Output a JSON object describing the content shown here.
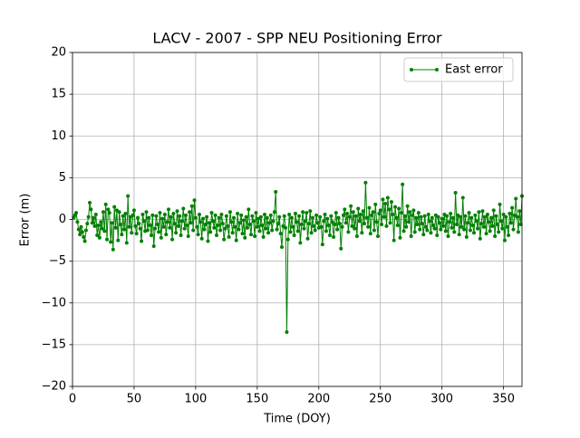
{
  "chart_data": {
    "type": "line",
    "title": "LACV - 2007 - SPP NEU Positioning Error",
    "x_label": "Time (DOY)",
    "y_label": "Error (m)",
    "xlim": [
      0,
      365
    ],
    "ylim": [
      -20,
      20
    ],
    "xticks": [
      0,
      50,
      100,
      150,
      200,
      250,
      300,
      350
    ],
    "yticks": [
      {
        "value": -20,
        "label": "−20"
      },
      {
        "value": -15,
        "label": "−15"
      },
      {
        "value": -10,
        "label": "−10"
      },
      {
        "value": -5,
        "label": "−5"
      },
      0,
      5,
      10,
      15,
      20
    ],
    "grid": true,
    "legend": "upper right",
    "x": [
      1,
      2,
      3,
      4,
      5,
      6,
      7,
      8,
      9,
      10,
      11,
      12,
      13,
      14,
      15,
      16,
      17,
      18,
      19,
      20,
      21,
      22,
      23,
      24,
      25,
      26,
      27,
      28,
      29,
      30,
      31,
      32,
      33,
      34,
      35,
      36,
      37,
      38,
      39,
      40,
      41,
      42,
      43,
      44,
      45,
      46,
      47,
      48,
      49,
      50,
      51,
      52,
      53,
      54,
      55,
      56,
      57,
      58,
      59,
      60,
      61,
      62,
      63,
      64,
      65,
      66,
      67,
      68,
      69,
      70,
      71,
      72,
      73,
      74,
      75,
      76,
      77,
      78,
      79,
      80,
      81,
      82,
      83,
      84,
      85,
      86,
      87,
      88,
      89,
      90,
      91,
      92,
      93,
      94,
      95,
      96,
      97,
      98,
      99,
      100,
      101,
      102,
      103,
      104,
      105,
      106,
      107,
      108,
      109,
      110,
      111,
      112,
      113,
      114,
      115,
      116,
      117,
      118,
      119,
      120,
      121,
      122,
      123,
      124,
      125,
      126,
      127,
      128,
      129,
      130,
      131,
      132,
      133,
      134,
      135,
      136,
      137,
      138,
      139,
      140,
      141,
      142,
      143,
      144,
      145,
      146,
      147,
      148,
      149,
      150,
      151,
      152,
      153,
      154,
      155,
      156,
      157,
      158,
      159,
      160,
      161,
      162,
      163,
      164,
      165,
      166,
      167,
      168,
      169,
      170,
      171,
      172,
      173,
      174,
      175,
      176,
      177,
      178,
      179,
      180,
      181,
      182,
      183,
      184,
      185,
      186,
      187,
      188,
      189,
      190,
      191,
      192,
      193,
      194,
      195,
      196,
      197,
      198,
      199,
      200,
      201,
      202,
      203,
      204,
      205,
      206,
      207,
      208,
      209,
      210,
      211,
      212,
      213,
      214,
      215,
      216,
      217,
      218,
      219,
      220,
      221,
      222,
      223,
      224,
      225,
      226,
      227,
      228,
      229,
      230,
      231,
      232,
      233,
      234,
      235,
      236,
      237,
      238,
      239,
      240,
      241,
      242,
      243,
      244,
      245,
      246,
      247,
      248,
      249,
      250,
      251,
      252,
      253,
      254,
      255,
      256,
      257,
      258,
      259,
      260,
      261,
      262,
      263,
      264,
      265,
      266,
      267,
      268,
      269,
      270,
      271,
      272,
      273,
      274,
      275,
      276,
      277,
      278,
      279,
      280,
      281,
      282,
      283,
      284,
      285,
      286,
      287,
      288,
      289,
      290,
      291,
      292,
      293,
      294,
      295,
      296,
      297,
      298,
      299,
      300,
      301,
      302,
      303,
      304,
      305,
      306,
      307,
      308,
      309,
      310,
      311,
      312,
      313,
      314,
      315,
      316,
      317,
      318,
      319,
      320,
      321,
      322,
      323,
      324,
      325,
      326,
      327,
      328,
      329,
      330,
      331,
      332,
      333,
      334,
      335,
      336,
      337,
      338,
      339,
      340,
      341,
      342,
      343,
      344,
      345,
      346,
      347,
      348,
      349,
      350,
      351,
      352,
      353,
      354,
      355,
      356,
      357,
      358,
      359,
      360,
      361,
      362,
      363,
      364,
      365
    ],
    "series": [
      {
        "name": "East error",
        "color": "#008000",
        "values": [
          0.2,
          0.5,
          0.8,
          -0.3,
          -1.2,
          -1.8,
          -0.9,
          -1.5,
          -2.1,
          -2.6,
          -1.3,
          -0.5,
          0.3,
          2.0,
          1.2,
          -0.4,
          0.2,
          -0.8,
          0.6,
          -1.9,
          -0.7,
          -2.2,
          -0.3,
          -1.1,
          0.9,
          -1.4,
          1.8,
          -2.4,
          1.2,
          0.8,
          -2.7,
          -0.4,
          -3.6,
          1.5,
          -1.0,
          1.1,
          -2.5,
          0.9,
          -0.6,
          -1.8,
          0.4,
          -1.2,
          0.7,
          -2.8,
          2.8,
          -0.9,
          0.3,
          -1.6,
          0.5,
          1.1,
          -0.8,
          -1.7,
          0.2,
          -0.5,
          -1.1,
          -2.6,
          0.6,
          -0.2,
          -1.4,
          0.9,
          -1.3,
          0.2,
          -0.7,
          -1.9,
          0.5,
          -3.2,
          -1.1,
          0.4,
          -0.6,
          -1.5,
          0.8,
          -2.2,
          0.1,
          -0.9,
          0.6,
          -1.8,
          -0.3,
          1.2,
          -1.0,
          0.3,
          -2.4,
          0.7,
          -0.5,
          -1.6,
          1.0,
          -0.8,
          0.4,
          -1.9,
          -0.2,
          1.3,
          -1.1,
          0.5,
          -0.7,
          -2.0,
          0.9,
          -0.4,
          1.6,
          -1.3,
          2.3,
          0.2,
          -0.9,
          -1.8,
          0.6,
          -0.3,
          -2.3,
          0.1,
          -1.2,
          -0.6,
          0.3,
          -2.6,
          -0.4,
          -1.5,
          0.8,
          -0.2,
          -1.0,
          0.5,
          -1.9,
          -0.7,
          0.2,
          -1.3,
          0.6,
          -0.5,
          -2.4,
          -1.1,
          0.4,
          -0.8,
          -2.1,
          0.9,
          -0.3,
          -1.6,
          0.2,
          -0.9,
          -2.5,
          0.7,
          -1.2,
          -0.4,
          0.5,
          -1.7,
          -0.1,
          -2.2,
          0.3,
          -1.0,
          1.2,
          -0.6,
          -1.8,
          0.4,
          -0.2,
          -2.0,
          0.8,
          -0.9,
          0.1,
          -1.4,
          0.3,
          -0.7,
          -2.1,
          0.6,
          -1.1,
          0.2,
          -1.6,
          -0.4,
          0.5,
          -1.3,
          -0.2,
          0.9,
          3.3,
          -1.2,
          -0.5,
          0.3,
          -1.7,
          -3.3,
          -0.8,
          0.4,
          -1.0,
          -13.5,
          -2.4,
          0.6,
          -1.5,
          0.2,
          -0.9,
          -1.9,
          0.7,
          -0.3,
          -1.4,
          0.4,
          -2.8,
          -0.6,
          0.9,
          -1.1,
          -0.2,
          0.8,
          -2.3,
          -0.5,
          1.0,
          -1.6,
          0.2,
          -0.8,
          -1.3,
          0.5,
          -0.4,
          -1.0,
          0.3,
          -0.9,
          -3.0,
          -0.2,
          0.6,
          -1.4,
          0.1,
          -0.7,
          -1.9,
          0.4,
          -0.3,
          -2.1,
          -0.6,
          0.8,
          -1.2,
          0.2,
          -0.5,
          -3.5,
          -0.9,
          0.5,
          1.2,
          -0.4,
          0.7,
          -1.5,
          0.3,
          1.6,
          -0.8,
          0.9,
          -1.1,
          0.4,
          -2.0,
          1.3,
          -0.2,
          0.6,
          -1.6,
          1.0,
          -0.5,
          4.4,
          0.2,
          -0.9,
          1.4,
          -1.7,
          0.5,
          0.9,
          -1.3,
          1.8,
          -0.3,
          -2.0,
          0.7,
          1.1,
          -0.6,
          2.4,
          0.3,
          1.9,
          -0.8,
          2.6,
          1.2,
          -0.4,
          2.1,
          0.6,
          -2.5,
          1.5,
          0.2,
          -0.7,
          1.3,
          -2.2,
          0.8,
          4.2,
          -1.4,
          0.4,
          -0.9,
          1.6,
          -0.3,
          0.9,
          -2.0,
          0.5,
          1.1,
          -1.5,
          0.2,
          -0.6,
          0.8,
          -1.2,
          0.3,
          -0.5,
          -1.8,
          0.4,
          -0.9,
          -1.3,
          0.6,
          -0.2,
          -1.6,
          0.2,
          -0.7,
          -1.1,
          0.5,
          -1.9,
          0.3,
          -0.4,
          -1.2,
          0.1,
          -0.8,
          0.6,
          -1.4,
          0.4,
          -2.0,
          -0.3,
          0.7,
          -1.0,
          0.2,
          -1.5,
          3.2,
          -0.6,
          0.5,
          -1.8,
          0.3,
          -0.9,
          2.6,
          -1.2,
          0.4,
          -2.1,
          -0.4,
          0.8,
          -1.3,
          0.2,
          -0.7,
          -1.6,
          0.5,
          -0.2,
          -1.1,
          0.9,
          -2.3,
          -0.5,
          1.0,
          -0.9,
          0.3,
          -1.7,
          0.6,
          -0.3,
          -1.4,
          0.2,
          -0.8,
          1.1,
          -2.0,
          0.4,
          -0.6,
          -1.5,
          1.8,
          -0.2,
          -1.1,
          0.6,
          -2.5,
          0.3,
          -0.9,
          -1.9,
          0.7,
          -0.4,
          1.4,
          -1.2,
          0.5,
          2.5,
          0.3,
          -1.5,
          1.0,
          -0.6,
          2.8
        ]
      }
    ]
  }
}
